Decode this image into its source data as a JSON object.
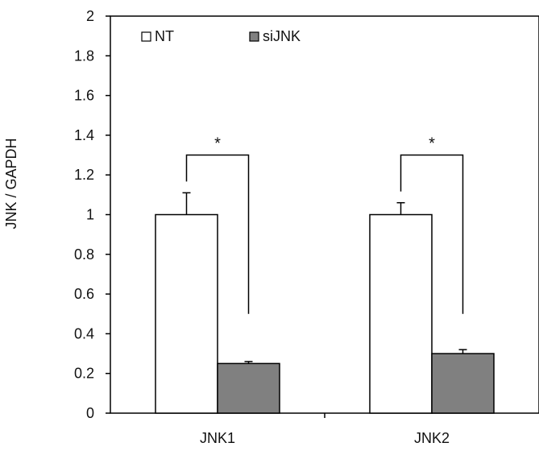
{
  "chart_data": {
    "type": "bar",
    "title": "",
    "xlabel": "",
    "ylabel": "JNK / GAPDH",
    "ylim": [
      0,
      2
    ],
    "yticks": [
      0,
      0.2,
      0.4,
      0.6,
      0.8,
      1,
      1.2,
      1.4,
      1.6,
      1.8,
      2
    ],
    "ytick_labels": [
      "0",
      "0.2",
      "0.4",
      "0.6",
      "0.8",
      "1",
      "1.2",
      "1.4",
      "1.6",
      "1.8",
      "2"
    ],
    "categories": [
      "JNK1",
      "JNK2"
    ],
    "series": [
      {
        "name": "NT",
        "values": [
          1.0,
          1.0
        ],
        "errors": [
          0.11,
          0.06
        ],
        "color": "#ffffff"
      },
      {
        "name": "siJNK",
        "values": [
          0.25,
          0.3
        ],
        "errors": [
          0.01,
          0.02
        ],
        "color": "#808080"
      }
    ],
    "significance": [
      {
        "category": "JNK1",
        "label": "*"
      },
      {
        "category": "JNK2",
        "label": "*"
      }
    ],
    "grid": false,
    "legend_position": "top-left"
  }
}
